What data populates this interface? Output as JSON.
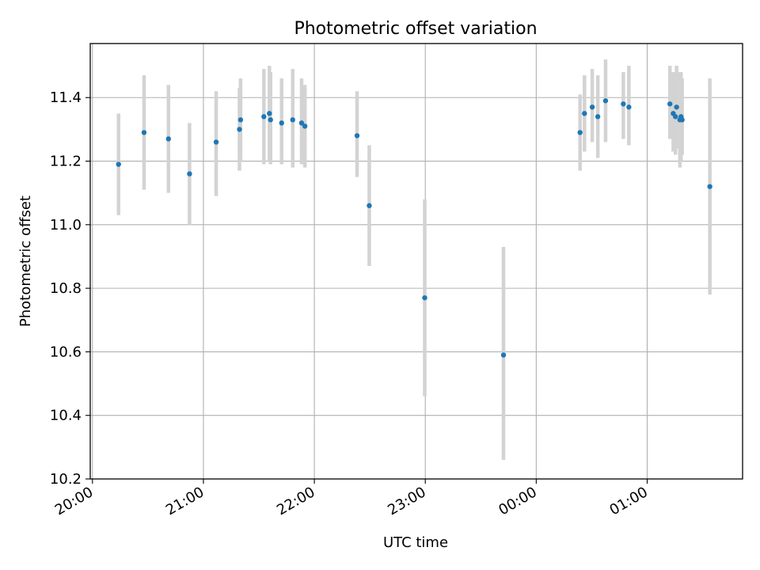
{
  "chart_data": {
    "type": "scatter",
    "title": "Photometric offset variation",
    "xlabel": "UTC time",
    "ylabel": "Photometric offset",
    "x_unit": "hours",
    "xlim": [
      19.98,
      25.86
    ],
    "ylim": [
      10.2,
      11.57
    ],
    "grid": true,
    "legend": "none",
    "point_color": "#1f77b4",
    "errorbar_color": "#d3d3d3",
    "x_ticks": [
      {
        "value": 20,
        "label": "20:00"
      },
      {
        "value": 21,
        "label": "21:00"
      },
      {
        "value": 22,
        "label": "22:00"
      },
      {
        "value": 23,
        "label": "23:00"
      },
      {
        "value": 24,
        "label": "00:00"
      },
      {
        "value": 25,
        "label": "01:00"
      }
    ],
    "y_ticks": [
      {
        "value": 10.2,
        "label": "10.2"
      },
      {
        "value": 10.4,
        "label": "10.4"
      },
      {
        "value": 10.6,
        "label": "10.6"
      },
      {
        "value": 10.8,
        "label": "10.8"
      },
      {
        "value": 11.0,
        "label": "11.0"
      },
      {
        "value": 11.2,
        "label": "11.2"
      },
      {
        "value": 11.4,
        "label": "11.4"
      }
    ],
    "points": [
      {
        "x": 20.235,
        "y": 11.19,
        "ylo": 11.03,
        "yhi": 11.35
      },
      {
        "x": 20.465,
        "y": 11.29,
        "ylo": 11.11,
        "yhi": 11.47
      },
      {
        "x": 20.685,
        "y": 11.27,
        "ylo": 11.1,
        "yhi": 11.44
      },
      {
        "x": 20.875,
        "y": 11.16,
        "ylo": 11.0,
        "yhi": 11.32
      },
      {
        "x": 21.115,
        "y": 11.26,
        "ylo": 11.09,
        "yhi": 11.42
      },
      {
        "x": 21.325,
        "y": 11.3,
        "ylo": 11.17,
        "yhi": 11.43
      },
      {
        "x": 21.335,
        "y": 11.33,
        "ylo": 11.2,
        "yhi": 11.46
      },
      {
        "x": 21.545,
        "y": 11.34,
        "ylo": 11.19,
        "yhi": 11.49
      },
      {
        "x": 21.595,
        "y": 11.35,
        "ylo": 11.2,
        "yhi": 11.5
      },
      {
        "x": 21.605,
        "y": 11.33,
        "ylo": 11.19,
        "yhi": 11.48
      },
      {
        "x": 21.705,
        "y": 11.32,
        "ylo": 11.19,
        "yhi": 11.46
      },
      {
        "x": 21.805,
        "y": 11.33,
        "ylo": 11.18,
        "yhi": 11.49
      },
      {
        "x": 21.885,
        "y": 11.32,
        "ylo": 11.19,
        "yhi": 11.46
      },
      {
        "x": 21.915,
        "y": 11.31,
        "ylo": 11.18,
        "yhi": 11.44
      },
      {
        "x": 22.385,
        "y": 11.28,
        "ylo": 11.15,
        "yhi": 11.42
      },
      {
        "x": 22.495,
        "y": 11.06,
        "ylo": 10.87,
        "yhi": 11.25
      },
      {
        "x": 22.995,
        "y": 10.77,
        "ylo": 10.46,
        "yhi": 11.08
      },
      {
        "x": 23.705,
        "y": 10.59,
        "ylo": 10.26,
        "yhi": 10.93
      },
      {
        "x": 24.395,
        "y": 11.29,
        "ylo": 11.17,
        "yhi": 11.41
      },
      {
        "x": 24.435,
        "y": 11.35,
        "ylo": 11.23,
        "yhi": 11.47
      },
      {
        "x": 24.505,
        "y": 11.37,
        "ylo": 11.26,
        "yhi": 11.49
      },
      {
        "x": 24.555,
        "y": 11.34,
        "ylo": 11.21,
        "yhi": 11.47
      },
      {
        "x": 24.625,
        "y": 11.39,
        "ylo": 11.26,
        "yhi": 11.52
      },
      {
        "x": 24.785,
        "y": 11.38,
        "ylo": 11.27,
        "yhi": 11.48
      },
      {
        "x": 24.835,
        "y": 11.37,
        "ylo": 11.25,
        "yhi": 11.5
      },
      {
        "x": 25.205,
        "y": 11.38,
        "ylo": 11.27,
        "yhi": 11.5
      },
      {
        "x": 25.235,
        "y": 11.35,
        "ylo": 11.23,
        "yhi": 11.48
      },
      {
        "x": 25.255,
        "y": 11.34,
        "ylo": 11.22,
        "yhi": 11.47
      },
      {
        "x": 25.265,
        "y": 11.37,
        "ylo": 11.24,
        "yhi": 11.5
      },
      {
        "x": 25.295,
        "y": 11.33,
        "ylo": 11.18,
        "yhi": 11.48
      },
      {
        "x": 25.305,
        "y": 11.34,
        "ylo": 11.2,
        "yhi": 11.48
      },
      {
        "x": 25.315,
        "y": 11.33,
        "ylo": 11.22,
        "yhi": 11.46
      },
      {
        "x": 25.565,
        "y": 11.12,
        "ylo": 10.78,
        "yhi": 11.46
      }
    ]
  }
}
